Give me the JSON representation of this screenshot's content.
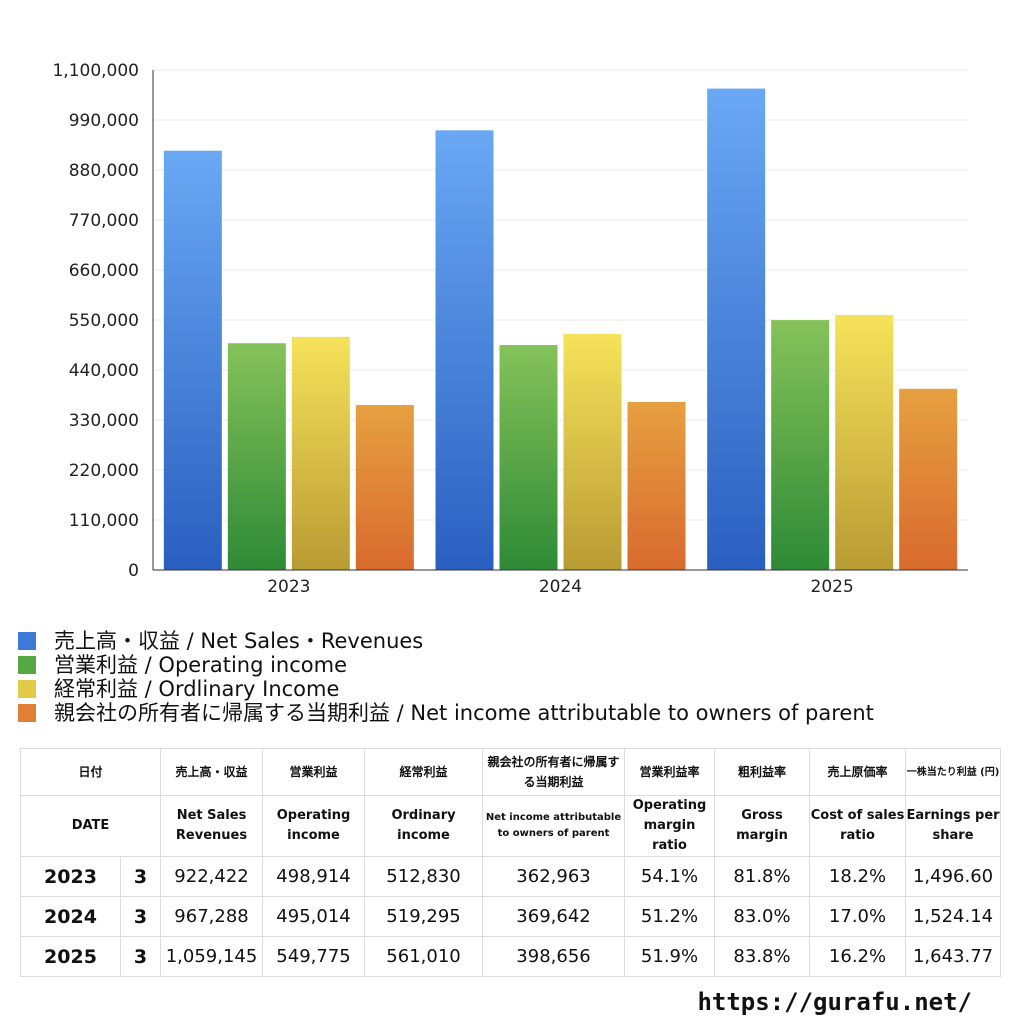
{
  "chart_data": {
    "type": "bar",
    "categories": [
      "2023",
      "2024",
      "2025"
    ],
    "series": [
      {
        "name": "売上高・収益 / Net Sales・Revenues",
        "values": [
          922422,
          967288,
          1059145
        ],
        "color": "#3d7ad8"
      },
      {
        "name": "営業利益 / Operating income",
        "values": [
          498914,
          495014,
          549775
        ],
        "color": "#56a845"
      },
      {
        "name": "経常利益 / Ordlinary Income",
        "values": [
          512830,
          519295,
          561010
        ],
        "color": "#e2c947"
      },
      {
        "name": "親会社の所有者に帰属する当期利益 / Net income attributable to owners of parent",
        "values": [
          362963,
          369642,
          398656
        ],
        "color": "#e07f36"
      }
    ],
    "ylim": [
      0,
      1100000
    ],
    "yticks": [
      "0",
      "110,000",
      "220,000",
      "330,000",
      "440,000",
      "550,000",
      "660,000",
      "770,000",
      "880,000",
      "990,000",
      "1,100,000"
    ],
    "grid": true,
    "legend": "bottom-left",
    "title": "",
    "xlabel": "",
    "ylabel": ""
  },
  "table": {
    "header_jp": [
      "日付",
      "売上高・収益",
      "営業利益",
      "経常利益",
      "親会社の所有者に帰属する当期利益",
      "営業利益率",
      "粗利益率",
      "売上原価率",
      "一株当たり利益 (円)"
    ],
    "header_en": [
      "DATE",
      "Net Sales Revenues",
      "Operating income",
      "Ordinary income",
      "Net income attributable to owners of parent",
      "Operating margin ratio",
      "Gross margin",
      "Cost of sales ratio",
      "Earnings per share"
    ],
    "rows": [
      {
        "year": "2023",
        "month": "3",
        "sales": "922,422",
        "op": "498,914",
        "ord": "512,830",
        "net": "362,963",
        "opm": "54.1%",
        "gm": "81.8%",
        "cos": "18.2%",
        "eps": "1,496.60"
      },
      {
        "year": "2024",
        "month": "3",
        "sales": "967,288",
        "op": "495,014",
        "ord": "519,295",
        "net": "369,642",
        "opm": "51.2%",
        "gm": "83.0%",
        "cos": "17.0%",
        "eps": "1,524.14"
      },
      {
        "year": "2025",
        "month": "3",
        "sales": "1,059,145",
        "op": "549,775",
        "ord": "561,010",
        "net": "398,656",
        "opm": "51.9%",
        "gm": "83.8%",
        "cos": "16.2%",
        "eps": "1,643.77"
      }
    ]
  },
  "source": "https://gurafu.net/"
}
